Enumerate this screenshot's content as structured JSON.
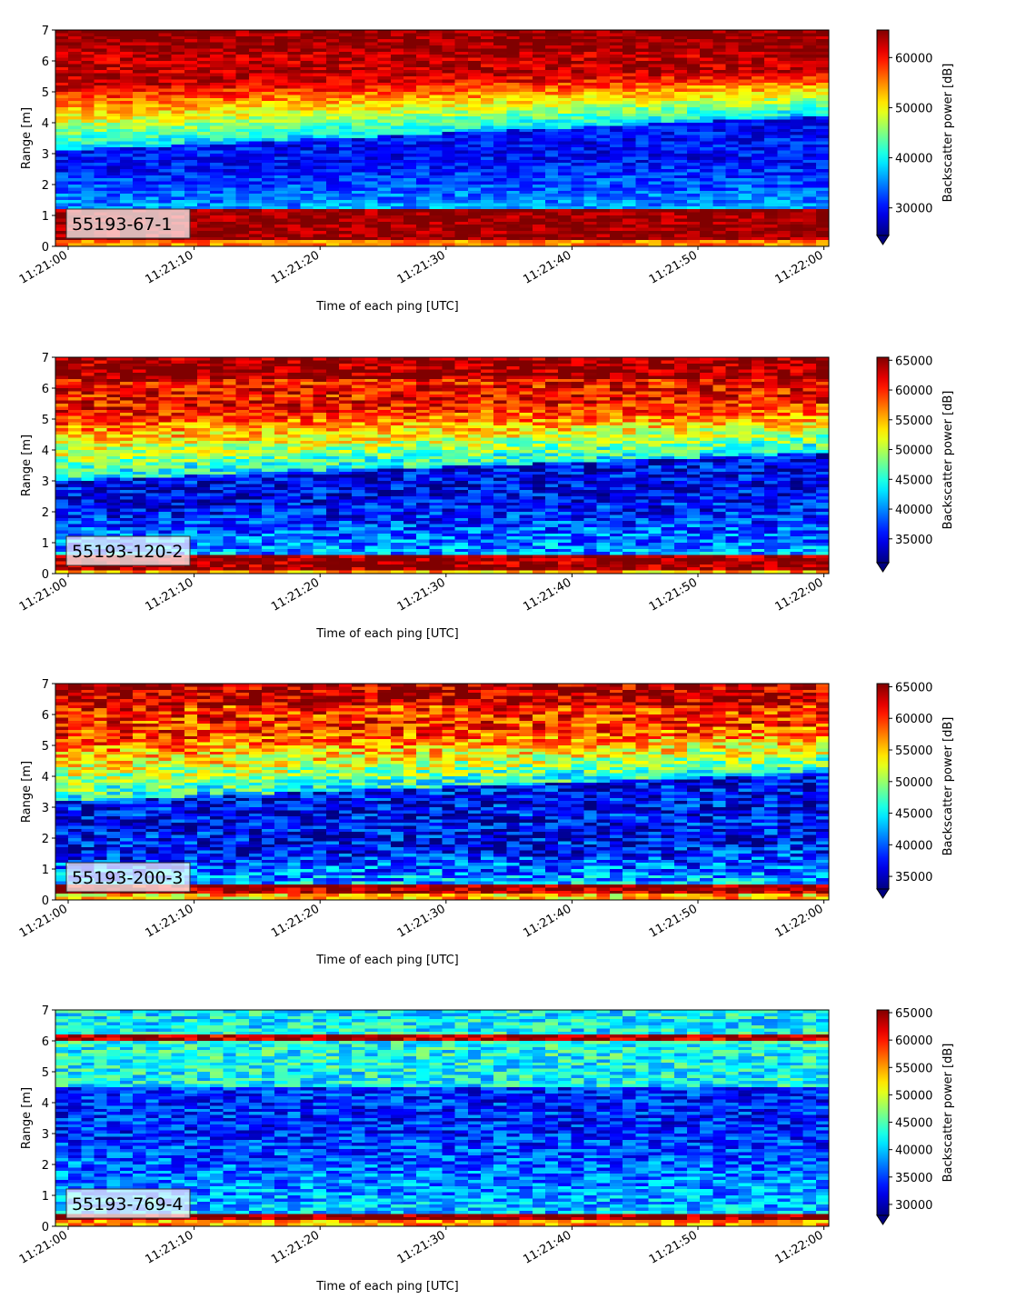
{
  "chart_data": [
    {
      "type": "heatmap",
      "label": "55193-67-1",
      "xlabel": "Time of each ping [UTC]",
      "ylabel": "Range [m]",
      "colorbar_label": "Backscatter power [dB]",
      "colormap": "jet",
      "colorbar_extend": "min",
      "x_ticks": [
        "11:21:00",
        "11:21:10",
        "11:21:20",
        "11:21:30",
        "11:21:40",
        "11:21:50",
        "11:22:00"
      ],
      "y_ticks": [
        "0",
        "1",
        "2",
        "3",
        "4",
        "5",
        "6",
        "7"
      ],
      "ylim": [
        0,
        7
      ],
      "colorbar_ticks": [
        "30000",
        "40000",
        "50000",
        "60000"
      ],
      "vmin": 24500,
      "vmax": 65500,
      "structure": {
        "seabed_band": [
          0.2,
          1.2
        ],
        "low_band_start": [
          2.5,
          3.1
        ],
        "low_band_end": [
          2.9,
          4.2
        ],
        "low_value": 30000,
        "high_value": 63000,
        "bottom_value": 65000,
        "top_value": 65000,
        "noise": 4000
      }
    },
    {
      "type": "heatmap",
      "label": "55193-120-2",
      "xlabel": "Time of each ping [UTC]",
      "ylabel": "Range [m]",
      "colorbar_label": "Backscatter power [dB]",
      "colormap": "jet",
      "colorbar_extend": "min",
      "x_ticks": [
        "11:21:00",
        "11:21:10",
        "11:21:20",
        "11:21:30",
        "11:21:40",
        "11:21:50",
        "11:22:00"
      ],
      "y_ticks": [
        "0",
        "1",
        "2",
        "3",
        "4",
        "5",
        "6",
        "7"
      ],
      "ylim": [
        0,
        7
      ],
      "colorbar_ticks": [
        "35000",
        "40000",
        "45000",
        "50000",
        "55000",
        "60000",
        "65000"
      ],
      "vmin": 31000,
      "vmax": 65500,
      "structure": {
        "seabed_band": [
          0.1,
          0.6
        ],
        "low_band_start": [
          2.2,
          3.0
        ],
        "low_band_end": [
          2.5,
          3.9
        ],
        "low_value": 35000,
        "high_value": 61000,
        "bottom_value": 65000,
        "top_value": 65000,
        "noise": 5000
      }
    },
    {
      "type": "heatmap",
      "label": "55193-200-3",
      "xlabel": "Time of each ping [UTC]",
      "ylabel": "Range [m]",
      "colorbar_label": "Backscatter power [dB]",
      "colormap": "jet",
      "colorbar_extend": "min",
      "x_ticks": [
        "11:21:00",
        "11:21:10",
        "11:21:20",
        "11:21:30",
        "11:21:40",
        "11:21:50",
        "11:22:00"
      ],
      "y_ticks": [
        "0",
        "1",
        "2",
        "3",
        "4",
        "5",
        "6",
        "7"
      ],
      "ylim": [
        0,
        7
      ],
      "colorbar_ticks": [
        "35000",
        "40000",
        "45000",
        "50000",
        "55000",
        "60000",
        "65000"
      ],
      "vmin": 33000,
      "vmax": 65500,
      "structure": {
        "seabed_band": [
          0.15,
          0.5
        ],
        "low_band_start": [
          1.5,
          3.2
        ],
        "low_band_end": [
          1.8,
          4.1
        ],
        "low_value": 37000,
        "high_value": 60000,
        "bottom_value": 65000,
        "top_value": 64000,
        "noise": 5500
      }
    },
    {
      "type": "heatmap",
      "label": "55193-769-4",
      "xlabel": "Time of each ping [UTC]",
      "ylabel": "Range [m]",
      "colorbar_label": "Backscatter power [dB]",
      "colormap": "jet",
      "colorbar_extend": "min",
      "x_ticks": [
        "11:21:00",
        "11:21:10",
        "11:21:20",
        "11:21:30",
        "11:21:40",
        "11:21:50",
        "11:22:00"
      ],
      "y_ticks": [
        "0",
        "1",
        "2",
        "3",
        "4",
        "5",
        "6",
        "7"
      ],
      "ylim": [
        0,
        7
      ],
      "colorbar_ticks": [
        "30000",
        "35000",
        "40000",
        "45000",
        "50000",
        "55000",
        "60000",
        "65000"
      ],
      "vmin": 28000,
      "vmax": 65500,
      "structure": {
        "seabed_band": [
          0.15,
          0.35
        ],
        "low_band_start": [
          3.0,
          4.5
        ],
        "low_band_end": [
          3.0,
          4.5
        ],
        "low_value": 34000,
        "high_value": 43000,
        "bottom_value": 65000,
        "top_value": 42000,
        "noise": 5000,
        "surface_line": 6.1
      }
    }
  ]
}
